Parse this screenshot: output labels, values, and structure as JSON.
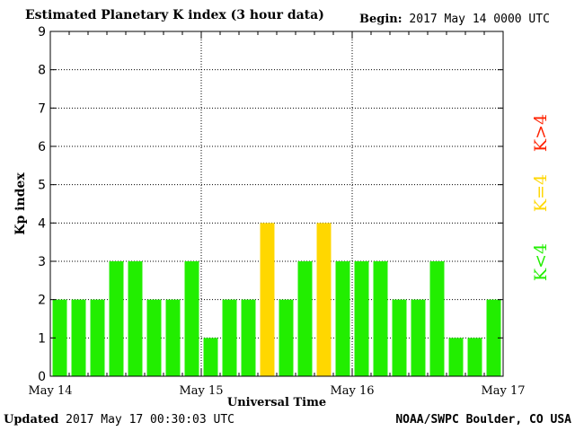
{
  "header": {
    "title": "Estimated Planetary K index (3 hour data)",
    "begin_label": "Begin:",
    "begin_value": "2017 May 14 0000 UTC"
  },
  "footer": {
    "updated_label": "Updated",
    "updated_value": "2017 May 17 00:30:03 UTC",
    "source": "NOAA/SWPC Boulder, CO USA"
  },
  "legend": {
    "items": [
      {
        "label": "K<4",
        "color": "#22ee00"
      },
      {
        "label": "K=4",
        "color": "#ffd700"
      },
      {
        "label": "K>4",
        "color": "#ff2200"
      }
    ]
  },
  "chart_data": {
    "type": "bar",
    "title": "Estimated Planetary K index (3 hour data)",
    "xlabel": "Universal Time",
    "ylabel": "Kp index",
    "ylim": [
      0,
      9
    ],
    "yticks": [
      0,
      1,
      2,
      3,
      4,
      5,
      6,
      7,
      8,
      9
    ],
    "x_tick_labels": [
      "May 14",
      "May 15",
      "May 16",
      "May 17"
    ],
    "bars_per_day": 8,
    "values": [
      2,
      2,
      2,
      3,
      3,
      2,
      2,
      3,
      1,
      2,
      2,
      4,
      2,
      3,
      4,
      3,
      3,
      3,
      2,
      2,
      3,
      1,
      1,
      2
    ],
    "colors": {
      "low": "#22ee00",
      "equal": "#ffd700",
      "high": "#ff2200"
    },
    "grid": true
  }
}
